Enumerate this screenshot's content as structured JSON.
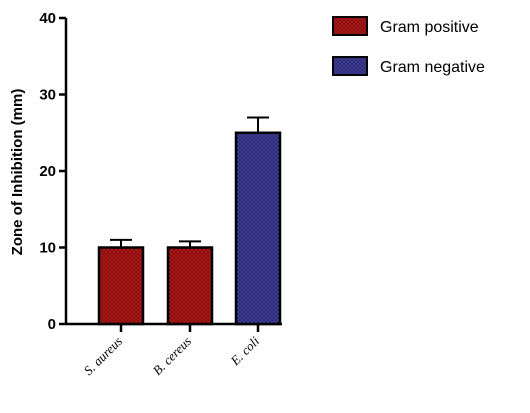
{
  "chart_data": {
    "type": "bar",
    "title": "",
    "xlabel": "",
    "ylabel": "Zone of Inhibition (mm)",
    "ylim": [
      0,
      40
    ],
    "yticks": [
      0,
      10,
      20,
      30,
      40
    ],
    "categories": [
      "S. aureus",
      "B. cereus",
      "E. coli"
    ],
    "values": [
      10,
      10,
      25
    ],
    "errors": [
      1,
      0.8,
      2
    ],
    "groups": [
      "Gram positive",
      "Gram positive",
      "Gram negative"
    ],
    "legend": [
      {
        "label": "Gram positive",
        "color": "#b01818"
      },
      {
        "label": "Gram negative",
        "color": "#3e3e9a"
      }
    ],
    "legend_position": "top-right",
    "grid": false
  }
}
